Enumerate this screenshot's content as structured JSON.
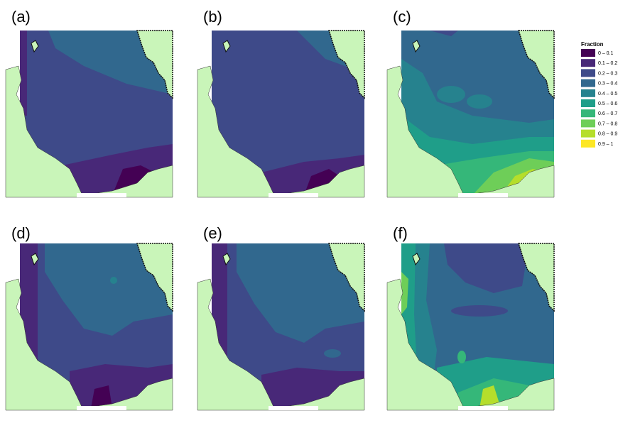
{
  "panels": [
    {
      "label": "(a)"
    },
    {
      "label": "(b)"
    },
    {
      "label": "(c)"
    },
    {
      "label": "(d)"
    },
    {
      "label": "(e)"
    },
    {
      "label": "(f)"
    }
  ],
  "legend": {
    "title": "Fraction",
    "items": [
      {
        "label": "0 – 0.1",
        "color": "#440154"
      },
      {
        "label": "0.1 – 0.2",
        "color": "#482878"
      },
      {
        "label": "0.2 – 0.3",
        "color": "#3e4a89"
      },
      {
        "label": "0.3 – 0.4",
        "color": "#31688e"
      },
      {
        "label": "0.4 – 0.5",
        "color": "#26828e"
      },
      {
        "label": "0.5 – 0.6",
        "color": "#1f9e89"
      },
      {
        "label": "0.6 – 0.7",
        "color": "#35b779"
      },
      {
        "label": "0.7 – 0.8",
        "color": "#6ece58"
      },
      {
        "label": "0.8 – 0.9",
        "color": "#b5de2b"
      },
      {
        "label": "0.9 – 1",
        "color": "#fde725"
      }
    ]
  }
}
